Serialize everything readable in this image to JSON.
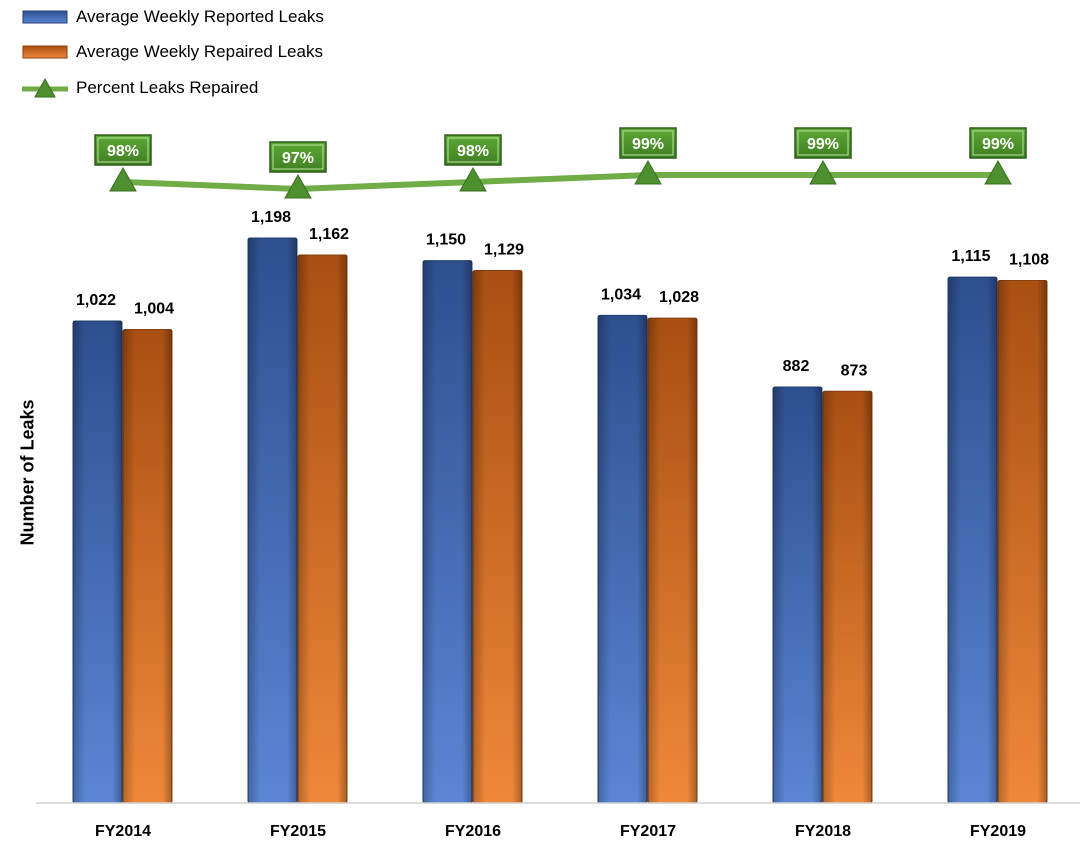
{
  "chart_data": {
    "type": "bar",
    "categories": [
      "FY2014",
      "FY2015",
      "FY2016",
      "FY2017",
      "FY2018",
      "FY2019"
    ],
    "series": [
      {
        "name": "Average Weekly Reported Leaks",
        "values": [
          1022,
          1198,
          1150,
          1034,
          882,
          1115
        ],
        "labels": [
          "1,022",
          "1,198",
          "1,150",
          "1,034",
          "882",
          "1,115"
        ],
        "color": "#3f66b0"
      },
      {
        "name": "Average Weekly Repaired Leaks",
        "values": [
          1004,
          1162,
          1129,
          1028,
          873,
          1108
        ],
        "labels": [
          "1,004",
          "1,162",
          "1,129",
          "1,028",
          "873",
          "1,108"
        ],
        "color": "#e07a2e"
      }
    ],
    "line_series": {
      "name": "Percent Leaks Repaired",
      "values": [
        98,
        97,
        98,
        99,
        99,
        99
      ],
      "labels": [
        "98%",
        "97%",
        "98%",
        "99%",
        "99%",
        "99%"
      ],
      "color": "#70ad47"
    },
    "ylabel": "Number of Leaks",
    "ylim": [
      0,
      1198
    ],
    "grid": false,
    "legend_position": "top-left"
  }
}
